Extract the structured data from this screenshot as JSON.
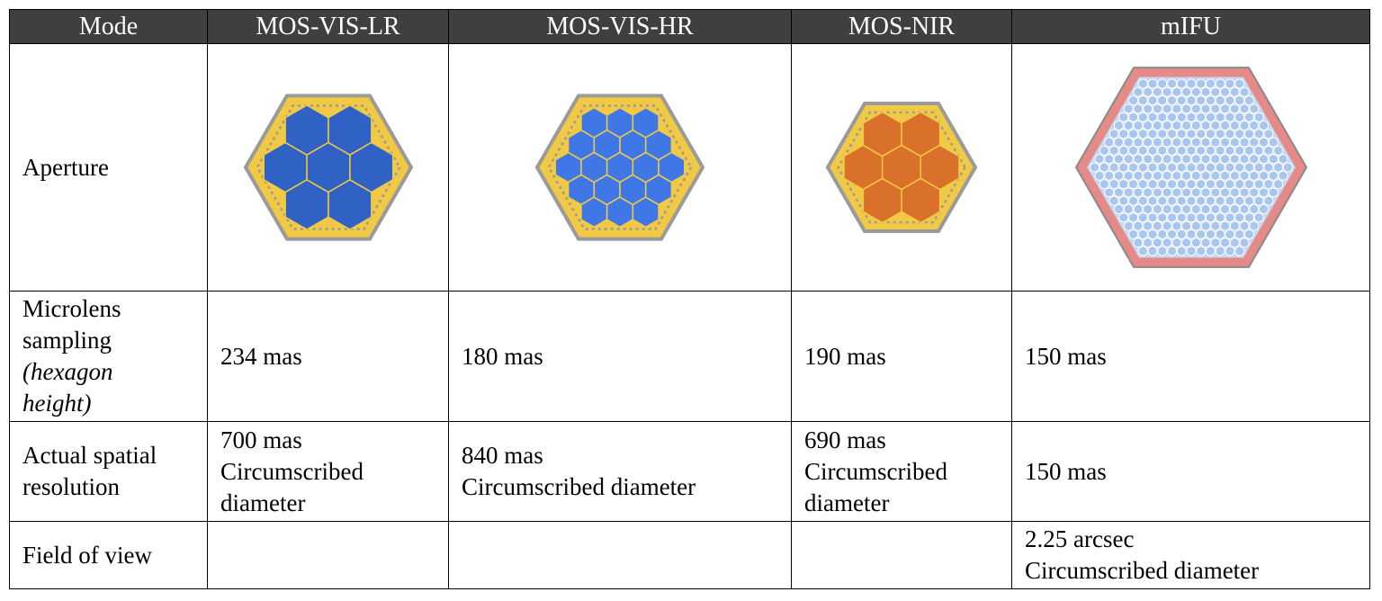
{
  "table": {
    "header": [
      "Mode",
      "MOS-VIS-LR",
      "MOS-VIS-HR",
      "MOS-NIR",
      "mIFU"
    ],
    "rows": {
      "aperture": {
        "label": "Aperture",
        "icons": [
          "hexagon-aperture-7-dark-blue-icon",
          "hexagon-aperture-19-blue-icon",
          "hexagon-aperture-7-orange-icon",
          "hexagon-aperture-dense-light-blue-icon"
        ]
      },
      "microlens": {
        "label_lines": [
          "Microlens",
          "sampling"
        ],
        "label_italic_lines": [
          "(hexagon",
          "height)"
        ],
        "values": [
          "234 mas",
          "180 mas",
          "190 mas",
          "150 mas"
        ]
      },
      "resolution": {
        "label_lines": [
          "Actual spatial",
          "resolution"
        ],
        "values": [
          [
            "700 mas",
            "Circumscribed",
            "diameter"
          ],
          [
            "840 mas",
            "Circumscribed diameter"
          ],
          [
            "690 mas",
            "Circumscribed",
            "diameter"
          ],
          [
            "150 mas"
          ]
        ]
      },
      "fov": {
        "label": "Field of view",
        "values": [
          "",
          "",
          "",
          [
            "2.25 arcsec",
            "Circumscribed diameter"
          ]
        ]
      }
    }
  },
  "colors": {
    "header_bg": "#3f3f3f",
    "frame_yellow": "#f1c944",
    "frame_border": "#9a9a9a",
    "lens_dark_blue": "#2f62c4",
    "lens_blue": "#3f78e6",
    "lens_orange": "#d9712b",
    "mifu_pink": "#e58a86",
    "mifu_blue": "#a9c6ee"
  }
}
